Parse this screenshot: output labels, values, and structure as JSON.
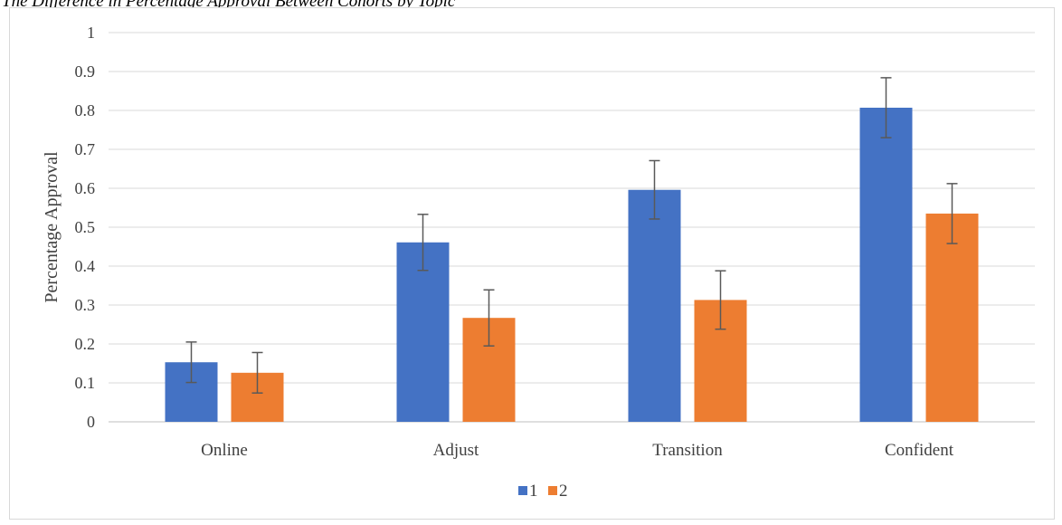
{
  "caption": "The Difference in Percentage Approval Between Cohorts by Topic",
  "chart_data": {
    "type": "bar",
    "title": "",
    "xlabel": "",
    "ylabel": "Percentage Approval",
    "ylim": [
      0,
      1
    ],
    "yticks": [
      0,
      0.1,
      0.2,
      0.3,
      0.4,
      0.5,
      0.6,
      0.7,
      0.8,
      0.9,
      1
    ],
    "ytick_labels": [
      "0",
      "0.1",
      "0.2",
      "0.3",
      "0.4",
      "0.5",
      "0.6",
      "0.7",
      "0.8",
      "0.9",
      "1"
    ],
    "grid": true,
    "legend_position": "bottom",
    "categories": [
      "Online",
      "Adjust",
      "Transition",
      "Confident"
    ],
    "series": [
      {
        "name": "1",
        "color": "#4472C4",
        "values": [
          0.153,
          0.461,
          0.596,
          0.807
        ],
        "error": [
          0.052,
          0.072,
          0.075,
          0.077
        ]
      },
      {
        "name": "2",
        "color": "#ED7D31",
        "values": [
          0.126,
          0.267,
          0.313,
          0.535
        ],
        "error": [
          0.052,
          0.072,
          0.075,
          0.077
        ]
      }
    ]
  }
}
